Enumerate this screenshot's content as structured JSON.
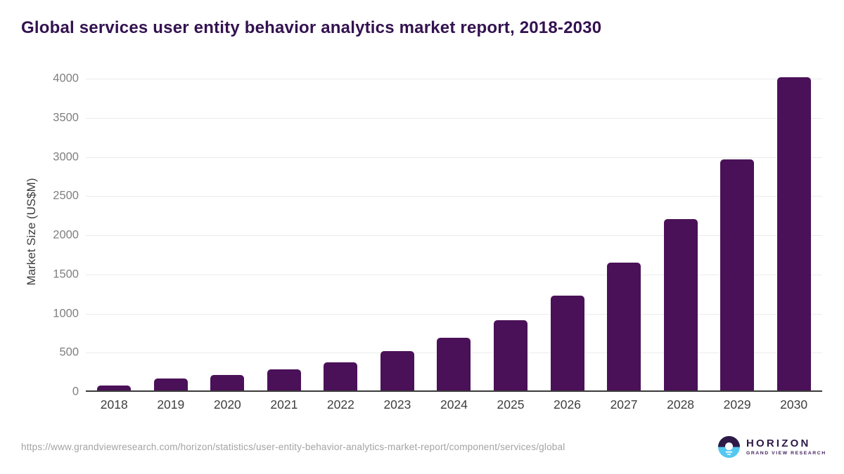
{
  "header": {
    "title": "Global services user entity behavior analytics market report, 2018-2030"
  },
  "chart_data": {
    "type": "bar",
    "title": "Global services user entity behavior analytics market report, 2018-2030",
    "categories": [
      "2018",
      "2019",
      "2020",
      "2021",
      "2022",
      "2023",
      "2024",
      "2025",
      "2026",
      "2027",
      "2028",
      "2029",
      "2030"
    ],
    "values": [
      60,
      150,
      195,
      265,
      360,
      500,
      670,
      900,
      1210,
      1630,
      2190,
      2950,
      4000
    ],
    "xlabel": "",
    "ylabel": "Market Size (US$M)",
    "ylim": [
      0,
      4000
    ],
    "y_ticks": [
      0,
      500,
      1000,
      1500,
      2000,
      2500,
      3000,
      3500,
      4000
    ],
    "grid": "horizontal",
    "legend": "none",
    "bar_color": "#4a1158"
  },
  "footer": {
    "source_url": "https://www.grandviewresearch.com/horizon/statistics/user-entity-behavior-analytics-market-report/component/services/global",
    "logo": {
      "brand": "HORIZON",
      "sub_brand": "GRAND VIEW RESEARCH"
    }
  },
  "colors": {
    "bar": "#4a1158",
    "title": "#331250",
    "y_tick_text": "#7f7f7f",
    "x_tick_text": "#3e3e3e",
    "gridline": "#ebebeb",
    "axis_line": "#3a3a3a",
    "url_text": "#a3a3a3",
    "logo_purple": "#2e1a47",
    "logo_blue": "#55c8f0"
  }
}
